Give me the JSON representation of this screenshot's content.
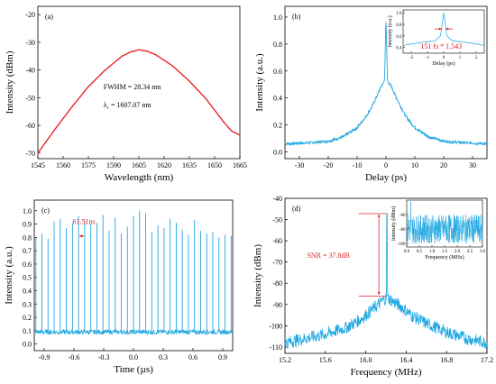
{
  "chart_data": [
    {
      "type": "line",
      "panel_label": "(a)",
      "xlabel": "Wavelength (nm)",
      "ylabel": "Intensity (dBm)",
      "xlim": [
        1545,
        1665
      ],
      "ylim": [
        -72,
        -17
      ],
      "xticks": [
        1545,
        1560,
        1575,
        1590,
        1605,
        1620,
        1635,
        1650,
        1665
      ],
      "yticks": [
        -70,
        -60,
        -50,
        -40,
        -30,
        -20
      ],
      "color": "#e8262a",
      "series": [
        {
          "x": [
            1545,
            1555,
            1565,
            1575,
            1585,
            1595,
            1600,
            1605,
            1610,
            1615,
            1625,
            1635,
            1645,
            1655,
            1660,
            1665
          ],
          "y": [
            -70,
            -61.5,
            -53.5,
            -46,
            -40,
            -35,
            -33.5,
            -32.7,
            -33.2,
            -34.5,
            -38.5,
            -44,
            -50.5,
            -58.5,
            -62,
            -63.5
          ]
        }
      ],
      "annotations": [
        "FWHM = 28.34 nm",
        "λ",
        "c",
        " = 1607.07 nm"
      ]
    },
    {
      "type": "line",
      "panel_label": "(b)",
      "xlabel": "Delay (ps)",
      "ylabel": "Intensity (a.u.)",
      "xlim": [
        -35,
        35
      ],
      "ylim": [
        -0.05,
        1.08
      ],
      "xticks": [
        -30,
        -20,
        -10,
        0,
        10,
        20,
        30
      ],
      "yticks": [
        0.0,
        0.2,
        0.4,
        0.6,
        0.8,
        1.0
      ],
      "color": "#1ea7e0",
      "series": [
        {
          "x": [
            -35,
            -30,
            -25,
            -20,
            -15,
            -10,
            -7,
            -5,
            -3,
            -2,
            -1,
            -0.5,
            0,
            0.5,
            1,
            2,
            3,
            5,
            7,
            10,
            15,
            20,
            25,
            30,
            35
          ],
          "y": [
            0.06,
            0.065,
            0.07,
            0.08,
            0.11,
            0.18,
            0.26,
            0.33,
            0.42,
            0.47,
            0.51,
            0.53,
            1.0,
            0.53,
            0.51,
            0.48,
            0.43,
            0.34,
            0.26,
            0.18,
            0.11,
            0.08,
            0.07,
            0.065,
            0.06
          ]
        }
      ],
      "inset": {
        "xlabel": "Delay (ps)",
        "ylabel": "Intensity (a.u.)",
        "xlim": [
          -2.5,
          2.5
        ],
        "ylim": [
          0.3,
          1.05
        ],
        "xticks": [
          -2,
          -1,
          0,
          1,
          2
        ],
        "yticks": [
          0.4,
          0.6,
          0.8,
          1.0
        ],
        "annotation": "151 fs * 1.543",
        "x": [
          -2.5,
          -2,
          -1.5,
          -1,
          -0.5,
          -0.2,
          -0.1,
          0,
          0.1,
          0.2,
          0.5,
          1,
          1.5,
          2,
          2.5
        ],
        "y": [
          0.43,
          0.46,
          0.48,
          0.5,
          0.52,
          0.6,
          0.8,
          1.0,
          0.8,
          0.6,
          0.52,
          0.5,
          0.48,
          0.46,
          0.44
        ]
      }
    },
    {
      "type": "line",
      "panel_label": "(c)",
      "xlabel": "Time (µs)",
      "ylabel": "Intensity (a.u.)",
      "xlim": [
        -1.0,
        1.0
      ],
      "ylim": [
        -0.05,
        1.08
      ],
      "xticks": [
        -0.9,
        -0.6,
        -0.3,
        0.0,
        0.3,
        0.6,
        0.9
      ],
      "yticks": [
        0.0,
        0.1,
        0.2,
        0.3,
        0.4,
        0.5,
        0.6,
        0.7,
        0.8,
        0.9,
        1.0
      ],
      "color": "#1ea7e0",
      "baseline": 0.09,
      "pulse_period_us": 0.06151,
      "pulse_peaks": [
        0.8,
        0.83,
        0.79,
        0.92,
        0.94,
        0.87,
        0.91,
        0.96,
        0.93,
        0.9,
        0.91,
        0.97,
        0.85,
        0.95,
        0.83,
        0.88,
        0.96,
        1.0,
        0.98,
        0.84,
        0.89,
        0.87,
        0.94,
        0.91,
        0.86,
        0.82,
        0.93,
        0.85,
        0.83,
        0.84,
        0.8,
        0.82,
        0.81
      ],
      "annotation": "61.51ns"
    },
    {
      "type": "line",
      "panel_label": "(d)",
      "xlabel": "Frequency (MHz)",
      "ylabel": "Intensity (dBm)",
      "xlim": [
        15.2,
        17.2
      ],
      "ylim": [
        -113,
        -40
      ],
      "xticks": [
        15.2,
        15.6,
        16.0,
        16.4,
        16.8,
        17.2
      ],
      "yticks": [
        -110,
        -100,
        -90,
        -80,
        -70,
        -60,
        -50,
        -40
      ],
      "color": "#1ea7e0",
      "series": [
        {
          "x": [
            15.2,
            15.4,
            15.6,
            15.8,
            15.95,
            16.05,
            16.15,
            16.2,
            16.21,
            16.22,
            16.25,
            16.35,
            16.45,
            16.6,
            16.8,
            17.0,
            17.2
          ],
          "y": [
            -108,
            -106,
            -104,
            -101,
            -97,
            -93,
            -89,
            -87,
            -47,
            -87,
            -88,
            -91,
            -95,
            -99,
            -103,
            -106,
            -108
          ]
        }
      ],
      "annotation": "SNR = 37.8dB",
      "inset": {
        "xlabel": "Frequency (MHz)",
        "ylabel": "Intensity (dBm)",
        "xlim": [
          0,
          3.0
        ],
        "ylim": [
          -105,
          -40
        ],
        "xticks": [
          0.0,
          0.5,
          1.0,
          1.5,
          2.0,
          2.5,
          3.0
        ],
        "yticks": [
          -100,
          -80,
          -60
        ],
        "xtick_labels": [
          "0.0",
          "0.5",
          "1.0",
          "1.5",
          "2.0",
          "2.5",
          "3.0"
        ],
        "ytick_labels": [
          "-100",
          "-80",
          "-60"
        ],
        "peak_x": 0.16,
        "noise_range": [
          -100,
          -60
        ]
      }
    }
  ]
}
